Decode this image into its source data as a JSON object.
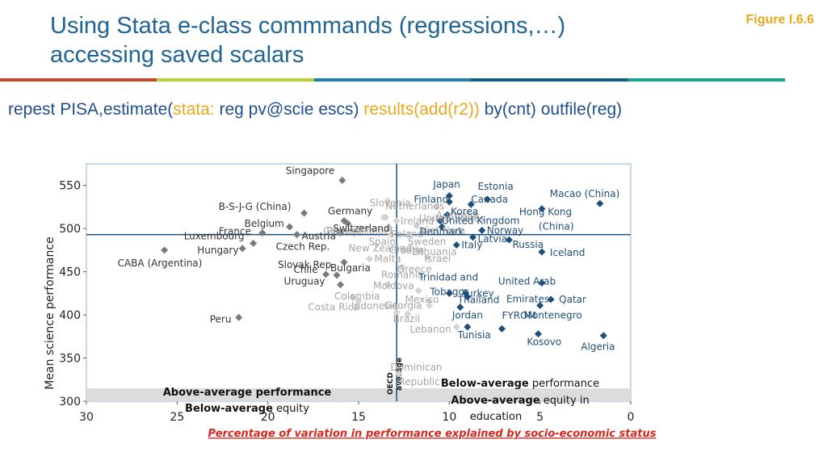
{
  "slide": {
    "title_line1": "Using Stata e-class commmands (regressions,…)",
    "title_line2": "accessing saved scalars",
    "figure_label": "Figure I.6.6",
    "command": {
      "part1": "repest PISA,estimate(",
      "part2": "stata:",
      "part3": " reg pv@scie escs) ",
      "part4": "results(add(r2))",
      "part5": " by(cnt) outfile(reg)"
    },
    "colors": {
      "title": "#1f6496",
      "accent": "#e8a81c",
      "command": "#1f4e8c",
      "bar": [
        "#c9442b",
        "#b9cf3a",
        "#1e7fae",
        "#0f5f86",
        "#15a58a"
      ]
    }
  },
  "chart_data": {
    "type": "scatter",
    "xlabel": "Percentage of variation in performance explained by socio-economic status",
    "ylabel": "Mean science performance",
    "xlim": [
      30,
      0
    ],
    "ylim": [
      300,
      575
    ],
    "x_reversed": true,
    "x_ticks": [
      30,
      25,
      20,
      15,
      10,
      5,
      0
    ],
    "y_ticks": [
      300,
      350,
      400,
      450,
      500,
      550
    ],
    "oecd_average": {
      "x": 12.9,
      "y": 493,
      "label_line1": "OECD",
      "label_line2": "average"
    },
    "quadrant_labels": {
      "left_line1_bold": "Above-average performance",
      "left_line2_bold": "Below-average",
      "left_line2_rest": " equity",
      "right_line1_bold": "Below-average",
      "right_line1_rest": " performance",
      "right_line2_bold": "Above-average",
      "right_line2_rest": " equity in",
      "right_line3": "education"
    },
    "series_colors": {
      "dark_gray": "#7a7a7a",
      "light_gray": "#d3d3d3",
      "navy": "#1f4e79"
    },
    "points": [
      {
        "label": "Singapore",
        "x": 15.9,
        "y": 556,
        "color": "dark_gray"
      },
      {
        "label": "Slovenia",
        "x": 13.5,
        "y": 513,
        "color": "light_gray"
      },
      {
        "label": "Netherlands",
        "x": 12.9,
        "y": 509,
        "color": "light_gray"
      },
      {
        "label": "Ireland",
        "x": 11.8,
        "y": 503,
        "color": "light_gray"
      },
      {
        "label": "United States",
        "x": 11.4,
        "y": 496,
        "color": "light_gray"
      },
      {
        "label": "Australia",
        "x": 10.6,
        "y": 510,
        "color": "light_gray"
      },
      {
        "label": "Japan",
        "x": 10.0,
        "y": 538,
        "color": "navy"
      },
      {
        "label": "Estonia",
        "x": 7.9,
        "y": 534,
        "color": "navy"
      },
      {
        "label": "Macao (China)",
        "x": 1.7,
        "y": 529,
        "color": "navy"
      },
      {
        "label": "Finland",
        "x": 10.0,
        "y": 531,
        "color": "navy"
      },
      {
        "label": "Canada",
        "x": 8.8,
        "y": 528,
        "color": "navy"
      },
      {
        "label": "Hong Kong (China)",
        "x": 4.9,
        "y": 523,
        "color": "navy"
      },
      {
        "label": "Korea",
        "x": 10.1,
        "y": 516,
        "color": "navy"
      },
      {
        "label": "New Zealand",
        "x": 13.6,
        "y": 513,
        "color": "light_gray"
      },
      {
        "label": "Chinese Taipei",
        "x": 13.4,
        "y": 532,
        "color": "light_gray"
      },
      {
        "label": "Viet Nam",
        "x": 10.7,
        "y": 525,
        "color": "light_gray"
      },
      {
        "label": "B-S-J-G (China)",
        "x": 18.0,
        "y": 518,
        "color": "dark_gray"
      },
      {
        "label": "Germany",
        "x": 15.8,
        "y": 509,
        "color": "dark_gray"
      },
      {
        "label": "Switzerland",
        "x": 15.6,
        "y": 506,
        "color": "dark_gray"
      },
      {
        "label": "Poland",
        "x": 13.3,
        "y": 501,
        "color": "light_gray"
      },
      {
        "label": "United Kingdom",
        "x": 10.5,
        "y": 509,
        "color": "navy"
      },
      {
        "label": "Belgium",
        "x": 18.8,
        "y": 502,
        "color": "dark_gray"
      },
      {
        "label": "Portugal",
        "x": 14.9,
        "y": 501,
        "color": "light_gray"
      },
      {
        "label": "Denmark",
        "x": 10.4,
        "y": 502,
        "color": "navy"
      },
      {
        "label": "Norway",
        "x": 8.2,
        "y": 498,
        "color": "navy"
      },
      {
        "label": "France",
        "x": 20.3,
        "y": 495,
        "color": "dark_gray"
      },
      {
        "label": "Austria",
        "x": 16.0,
        "y": 495,
        "color": "dark_gray"
      },
      {
        "label": "Latvia",
        "x": 8.7,
        "y": 490,
        "color": "navy"
      },
      {
        "label": "Russia",
        "x": 6.7,
        "y": 487,
        "color": "navy"
      },
      {
        "label": "Luxembourg",
        "x": 20.8,
        "y": 483,
        "color": "dark_gray"
      },
      {
        "label": "Czech Rep.",
        "x": 18.4,
        "y": 493,
        "color": "dark_gray"
      },
      {
        "label": "Spain",
        "x": 13.2,
        "y": 493,
        "color": "light_gray"
      },
      {
        "label": "Sweden",
        "x": 12.2,
        "y": 493,
        "color": "light_gray"
      },
      {
        "label": "Hungary",
        "x": 21.4,
        "y": 477,
        "color": "dark_gray"
      },
      {
        "label": "CABA (Argentina)",
        "x": 25.7,
        "y": 475,
        "color": "dark_gray"
      },
      {
        "label": "Italy",
        "x": 9.6,
        "y": 481,
        "color": "navy"
      },
      {
        "label": "Croatia",
        "x": 12.5,
        "y": 475,
        "color": "light_gray"
      },
      {
        "label": "Lithuania",
        "x": 11.8,
        "y": 475,
        "color": "light_gray"
      },
      {
        "label": "Iceland",
        "x": 4.9,
        "y": 473,
        "color": "navy"
      },
      {
        "label": "Malta",
        "x": 14.4,
        "y": 465,
        "color": "light_gray"
      },
      {
        "label": "Israel",
        "x": 11.2,
        "y": 467,
        "color": "light_gray"
      },
      {
        "label": "Slovak Rep.",
        "x": 15.8,
        "y": 461,
        "color": "dark_gray"
      },
      {
        "label": "Greece",
        "x": 12.6,
        "y": 455,
        "color": "light_gray"
      },
      {
        "label": "Chile",
        "x": 16.8,
        "y": 447,
        "color": "dark_gray"
      },
      {
        "label": "Bulgaria",
        "x": 16.2,
        "y": 446,
        "color": "dark_gray"
      },
      {
        "label": "United Arab Emirates",
        "x": 4.9,
        "y": 437,
        "color": "navy"
      },
      {
        "label": "Uruguay",
        "x": 16.0,
        "y": 435,
        "color": "dark_gray"
      },
      {
        "label": "Romania",
        "x": 13.4,
        "y": 435,
        "color": "light_gray"
      },
      {
        "label": "Moldova",
        "x": 11.7,
        "y": 428,
        "color": "light_gray"
      },
      {
        "label": "Trinidad and Tobago",
        "x": 10.0,
        "y": 425,
        "color": "navy"
      },
      {
        "label": "Turkey",
        "x": 9.1,
        "y": 425,
        "color": "navy"
      },
      {
        "label": "Colombia",
        "x": 15.0,
        "y": 416,
        "color": "light_gray"
      },
      {
        "label": "Costa Rica",
        "x": 15.3,
        "y": 420,
        "color": "light_gray"
      },
      {
        "label": "Qatar",
        "x": 4.4,
        "y": 418,
        "color": "navy"
      },
      {
        "label": "Mexico",
        "x": 11.1,
        "y": 416,
        "color": "light_gray"
      },
      {
        "label": "Thailand",
        "x": 9.0,
        "y": 421,
        "color": "navy"
      },
      {
        "label": "Georgia",
        "x": 11.1,
        "y": 411,
        "color": "light_gray"
      },
      {
        "label": "Montenegro",
        "x": 5.0,
        "y": 411,
        "color": "navy"
      },
      {
        "label": "Jordan",
        "x": 9.4,
        "y": 409,
        "color": "navy"
      },
      {
        "label": "Peru",
        "x": 21.6,
        "y": 397,
        "color": "dark_gray"
      },
      {
        "label": "Indonesia",
        "x": 12.9,
        "y": 403,
        "color": "light_gray"
      },
      {
        "label": "Brazil",
        "x": 12.3,
        "y": 401,
        "color": "light_gray"
      },
      {
        "label": "FYROM",
        "x": 7.1,
        "y": 384,
        "color": "navy"
      },
      {
        "label": "Tunisia",
        "x": 9.0,
        "y": 386,
        "color": "navy"
      },
      {
        "label": "Lebanon",
        "x": 9.6,
        "y": 386,
        "color": "light_gray"
      },
      {
        "label": "Kosovo",
        "x": 5.1,
        "y": 378,
        "color": "navy"
      },
      {
        "label": "Algeria",
        "x": 1.5,
        "y": 376,
        "color": "navy"
      },
      {
        "label": "Dominican Republic",
        "x": 12.8,
        "y": 332,
        "color": "light_gray"
      }
    ]
  }
}
